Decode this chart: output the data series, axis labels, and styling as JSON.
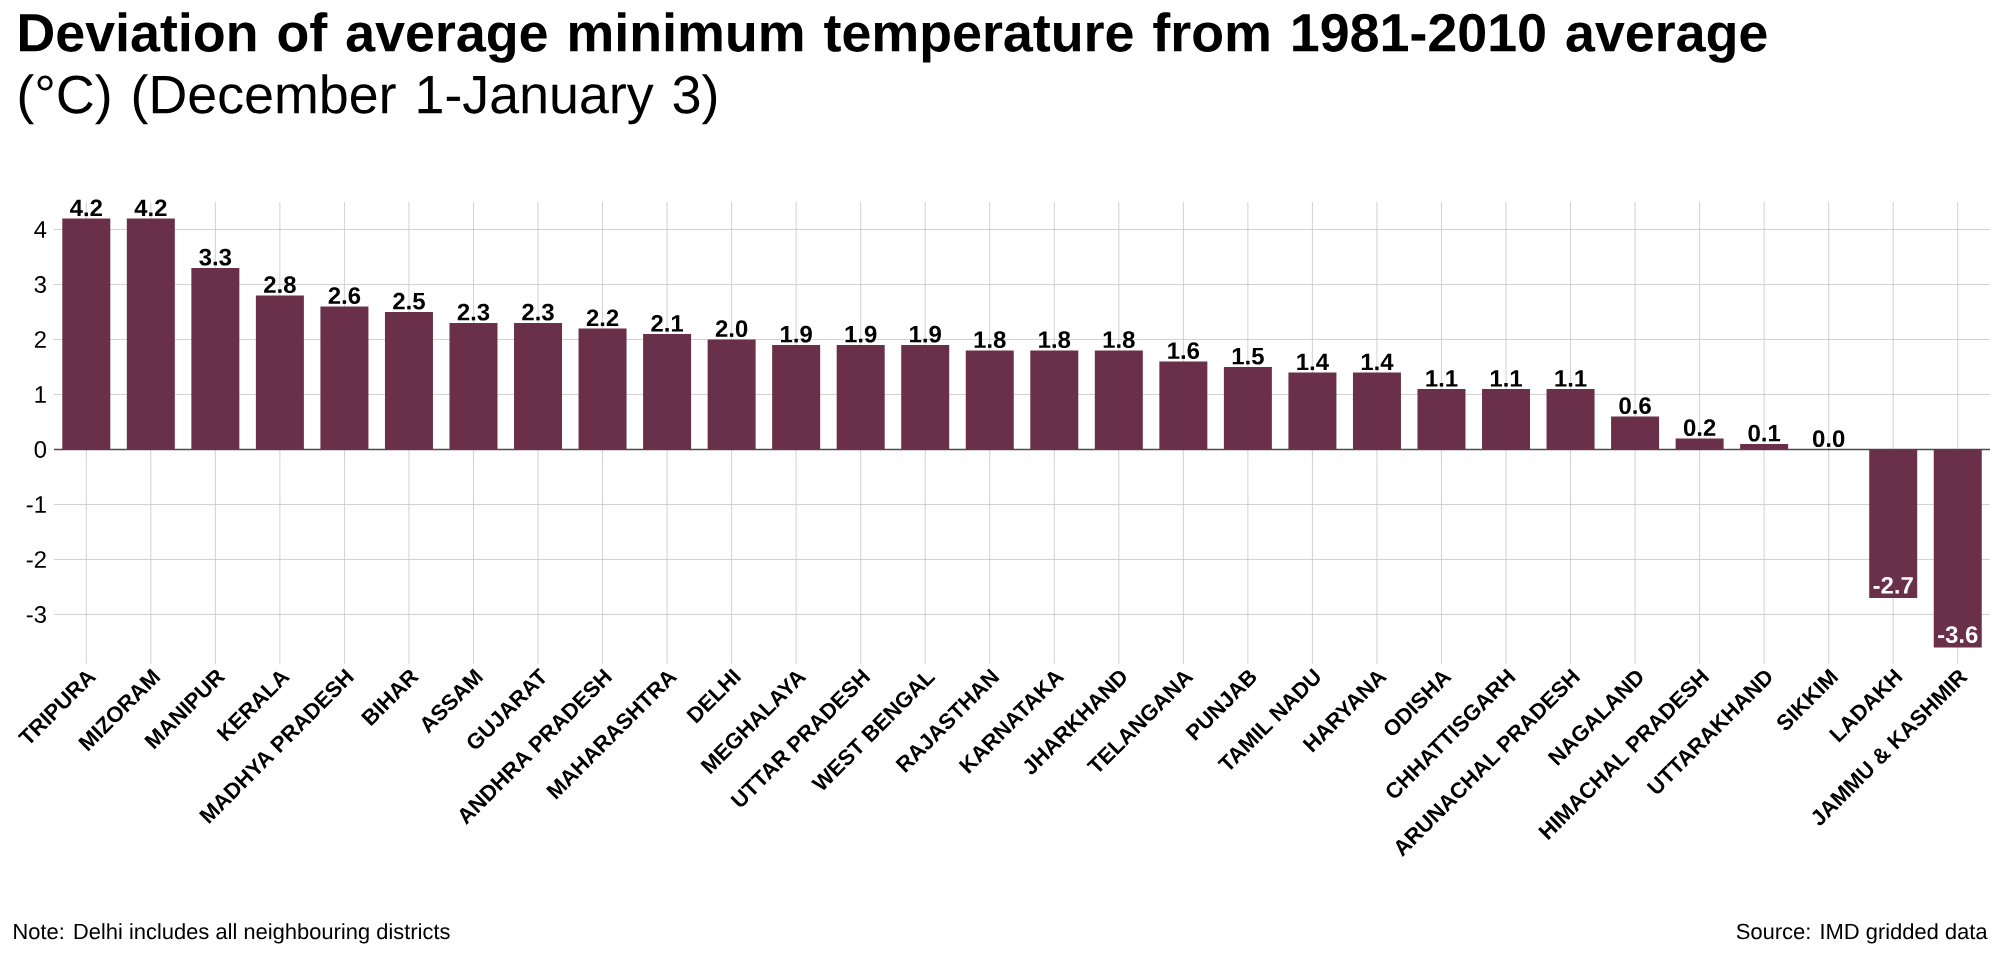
{
  "chart_data": {
    "type": "bar",
    "title": "**Deviation of average minimum temperature from 1981-2010 average** (°C) (December 1-January 3)",
    "categories": [
      "TRIPURA",
      "MIZORAM",
      "MANIPUR",
      "KERALA",
      "MADHYA PRADESH",
      "BIHAR",
      "ASSAM",
      "GUJARAT",
      "ANDHRA PRADESH",
      "MAHARASHTRA",
      "DELHI",
      "MEGHALAYA",
      "UTTAR PRADESH",
      "WEST BENGAL",
      "RAJASTHAN",
      "KARNATAKA",
      "JHARKHAND",
      "TELANGANA",
      "PUNJAB",
      "TAMIL NADU",
      "HARYANA",
      "ODISHA",
      "CHHATTISGARH",
      "ARUNACHAL PRADESH",
      "NAGALAND",
      "HIMACHAL PRADESH",
      "UTTARAKHAND",
      "SIKKIM",
      "LADAKH",
      "JAMMU & KASHMIR"
    ],
    "values": [
      4.2,
      4.2,
      3.3,
      2.8,
      2.6,
      2.5,
      2.3,
      2.3,
      2.2,
      2.1,
      2.0,
      1.9,
      1.9,
      1.9,
      1.8,
      1.8,
      1.8,
      1.6,
      1.5,
      1.4,
      1.4,
      1.1,
      1.1,
      1.1,
      0.6,
      0.2,
      0.1,
      0.0,
      -2.7,
      -3.6
    ],
    "color": "#6b3049",
    "ylim": [
      -3.9,
      4.5
    ],
    "yticks": [
      -3,
      -2,
      -1,
      0,
      1,
      2,
      3,
      4
    ],
    "grid": true,
    "value_labels": [
      "4.2",
      "4.2",
      "3.3",
      "2.8",
      "2.6",
      "2.5",
      "2.3",
      "2.3",
      "2.2",
      "2.1",
      "2.0",
      "1.9",
      "1.9",
      "1.9",
      "1.8",
      "1.8",
      "1.8",
      "1.6",
      "1.5",
      "1.4",
      "1.4",
      "1.1",
      "1.1",
      "1.1",
      "0.6",
      "0.2",
      "0.1",
      "0.0",
      "-2.7",
      "-3.6"
    ],
    "annotations": [
      "Note: Delhi includes all neighbouring districts",
      "Source: IMD gridded data"
    ]
  }
}
